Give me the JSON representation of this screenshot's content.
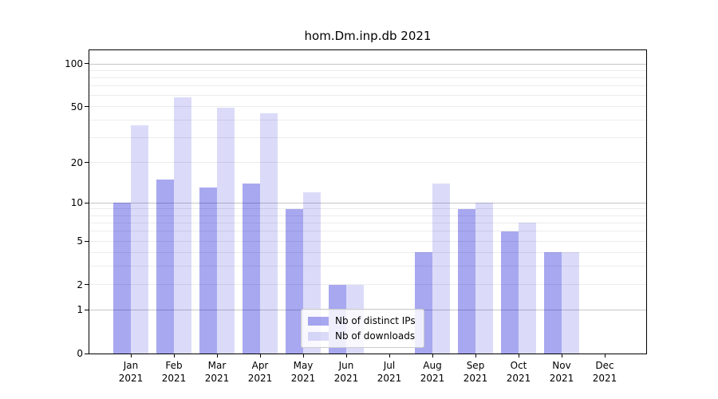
{
  "chart_data": {
    "type": "bar",
    "title": "hom.Dm.inp.db 2021",
    "categories": [
      {
        "month": "Jan",
        "year": "2021"
      },
      {
        "month": "Feb",
        "year": "2021"
      },
      {
        "month": "Mar",
        "year": "2021"
      },
      {
        "month": "Apr",
        "year": "2021"
      },
      {
        "month": "May",
        "year": "2021"
      },
      {
        "month": "Jun",
        "year": "2021"
      },
      {
        "month": "Jul",
        "year": "2021"
      },
      {
        "month": "Aug",
        "year": "2021"
      },
      {
        "month": "Sep",
        "year": "2021"
      },
      {
        "month": "Oct",
        "year": "2021"
      },
      {
        "month": "Nov",
        "year": "2021"
      },
      {
        "month": "Dec",
        "year": "2021"
      }
    ],
    "series": [
      {
        "name": "Nb of distinct IPs",
        "values": [
          10,
          15,
          13,
          14,
          9,
          2,
          0,
          4,
          9,
          6,
          4,
          0
        ],
        "color": "rgba(0,0,210,0.34)"
      },
      {
        "name": "Nb of downloads",
        "values": [
          37,
          58,
          49,
          45,
          12,
          2,
          0,
          14,
          10,
          7,
          4,
          0
        ],
        "color": "rgba(0,0,210,0.14)"
      }
    ],
    "y_axis": {
      "ticks": [
        0,
        1,
        2,
        5,
        10,
        20,
        50,
        100
      ],
      "minor_gridlines": [
        3,
        4,
        6,
        7,
        8,
        9,
        30,
        40,
        60,
        70,
        80,
        90
      ],
      "scale": "log(1+v)",
      "ylim": [
        0,
        125
      ]
    },
    "xlabel": "",
    "ylabel": "",
    "grid": true,
    "legend_position": "lower center"
  },
  "colors": {
    "bar_distinct_ips": "rgba(0,0,210,0.34)",
    "bar_downloads": "rgba(0,0,210,0.14)",
    "grid_minor": "#ececec",
    "grid_major": "#c6c6c6",
    "axis": "#000000",
    "legend_border": "#cccccc",
    "legend_bg": "rgba(255,255,255,0.8)"
  }
}
